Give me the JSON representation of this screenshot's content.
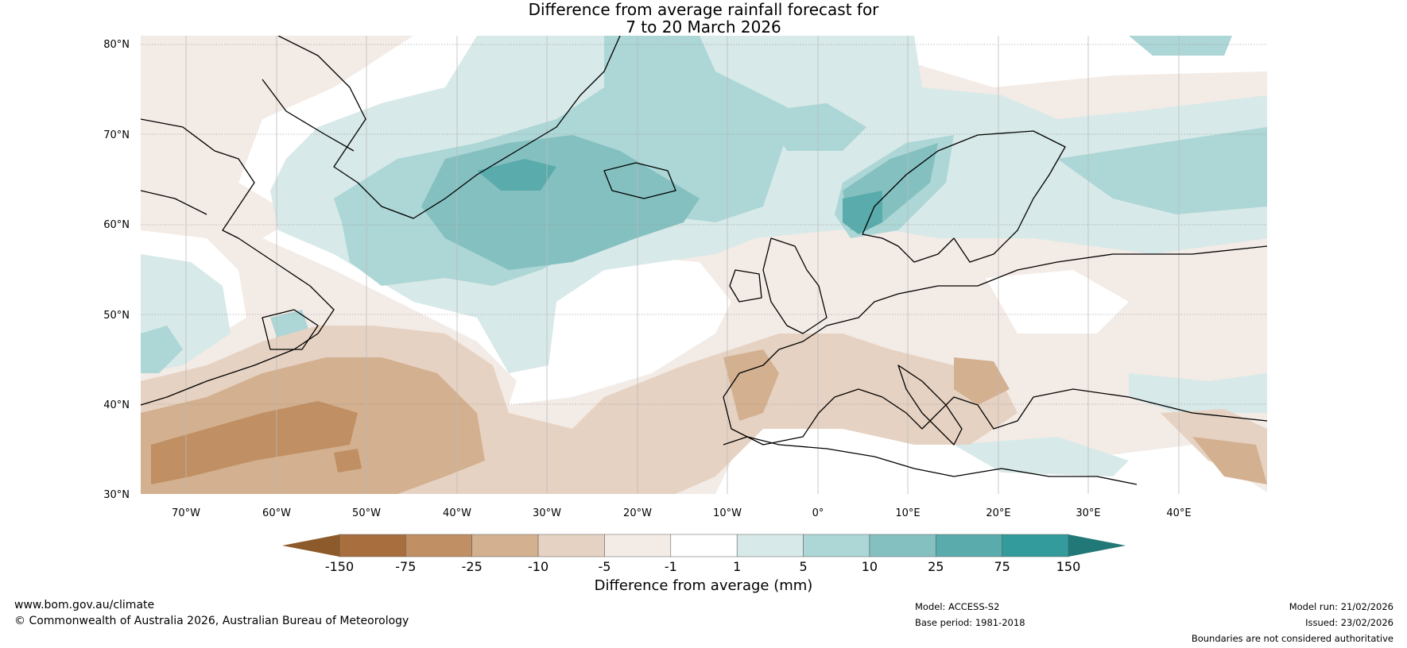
{
  "title": {
    "line1": "Difference from average rainfall forecast for",
    "line2": "7 to 20 March 2026"
  },
  "map": {
    "lat_labels": [
      "80°N",
      "70°N",
      "60°N",
      "50°N",
      "40°N",
      "30°N"
    ],
    "lon_labels": [
      "70°W",
      "60°W",
      "50°W",
      "40°W",
      "30°W",
      "20°W",
      "10°W",
      "0°",
      "10°E",
      "20°E",
      "30°E",
      "40°E"
    ],
    "region": "North Atlantic and Europe"
  },
  "colorbar": {
    "title": "Difference from average (mm)",
    "ticks": [
      "-150",
      "-75",
      "-25",
      "-10",
      "-5",
      "-1",
      "1",
      "5",
      "10",
      "25",
      "75",
      "150"
    ],
    "colors": [
      "#8c5a2b",
      "#a86e3e",
      "#c08f63",
      "#d3b08f",
      "#e6d2c2",
      "#f3ebe6",
      "#ffffff",
      "#d7e9e8",
      "#add6d6",
      "#84c0c0",
      "#5aabab",
      "#339b9b",
      "#227777"
    ]
  },
  "footer": {
    "website": "www.bom.gov.au/climate",
    "copyright": "© Commonwealth of Australia 2026, Australian Bureau of Meteorology",
    "model": "Model: ACCESS-S2",
    "base_period": "Base period: 1981-2018",
    "model_run": "Model run: 21/02/2026",
    "issued": "Issued: 23/02/2026",
    "disclaimer": "Boundaries are not considered authoritative"
  }
}
